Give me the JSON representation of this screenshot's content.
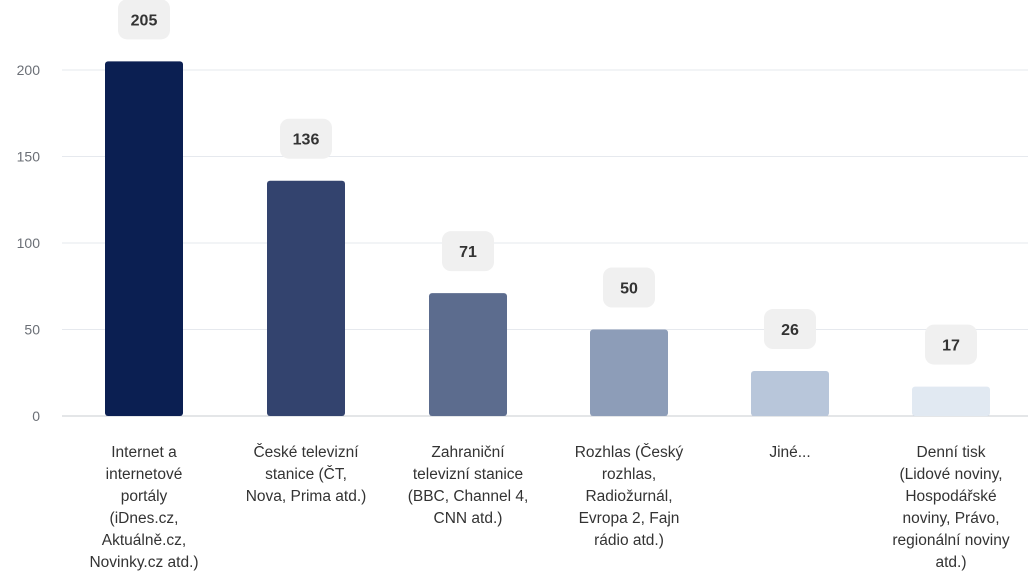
{
  "chart_data": {
    "type": "bar",
    "title": "",
    "xlabel": "",
    "ylabel": "",
    "ylim": [
      0,
      200
    ],
    "yticks": [
      0,
      50,
      100,
      150,
      200
    ],
    "grid": true,
    "categories": [
      "Internet a internetové portály (iDnes.cz, Aktuálně.cz, Novinky.cz atd.)",
      "České televizní stanice (ČT, Nova, Prima atd.)",
      "Zahraniční televizní stanice (BBC, Channel 4, CNN atd.)",
      "Rozhlas (Český rozhlas, Radiožurnál, Evropa 2, Fajn rádio atd.)",
      "Jiné...",
      "Denní tisk (Lidové noviny, Hospodářské noviny, Právo, regionální noviny atd.)"
    ],
    "category_lines": [
      [
        "Internet a",
        "internetové",
        "portály",
        "(iDnes.cz,",
        "Aktuálně.cz,",
        "Novinky.cz atd.)"
      ],
      [
        "České televizní",
        "stanice (ČT,",
        "Nova, Prima atd.)"
      ],
      [
        "Zahraniční",
        "televizní stanice",
        "(BBC, Channel 4,",
        "CNN atd.)"
      ],
      [
        "Rozhlas (Český",
        "rozhlas,",
        "Radiožurnál,",
        "Evropa 2, Fajn",
        "rádio atd.)"
      ],
      [
        "Jiné..."
      ],
      [
        "Denní tisk",
        "(Lidové noviny,",
        "Hospodářské",
        "noviny, Právo,",
        "regionální noviny",
        "atd.)"
      ]
    ],
    "values": [
      205,
      136,
      71,
      50,
      26,
      17
    ],
    "colors": [
      "#0b1f52",
      "#33436e",
      "#5c6c8e",
      "#8d9db8",
      "#b8c6da",
      "#e1e9f2"
    ],
    "gridline_color": "#e6e9ee",
    "axis_color": "#c8ccd2",
    "tick_color": "#6b6f76",
    "category_label_color": "#333333",
    "value_label_color": "#333333",
    "value_badge_color": "#f0f0f0"
  }
}
